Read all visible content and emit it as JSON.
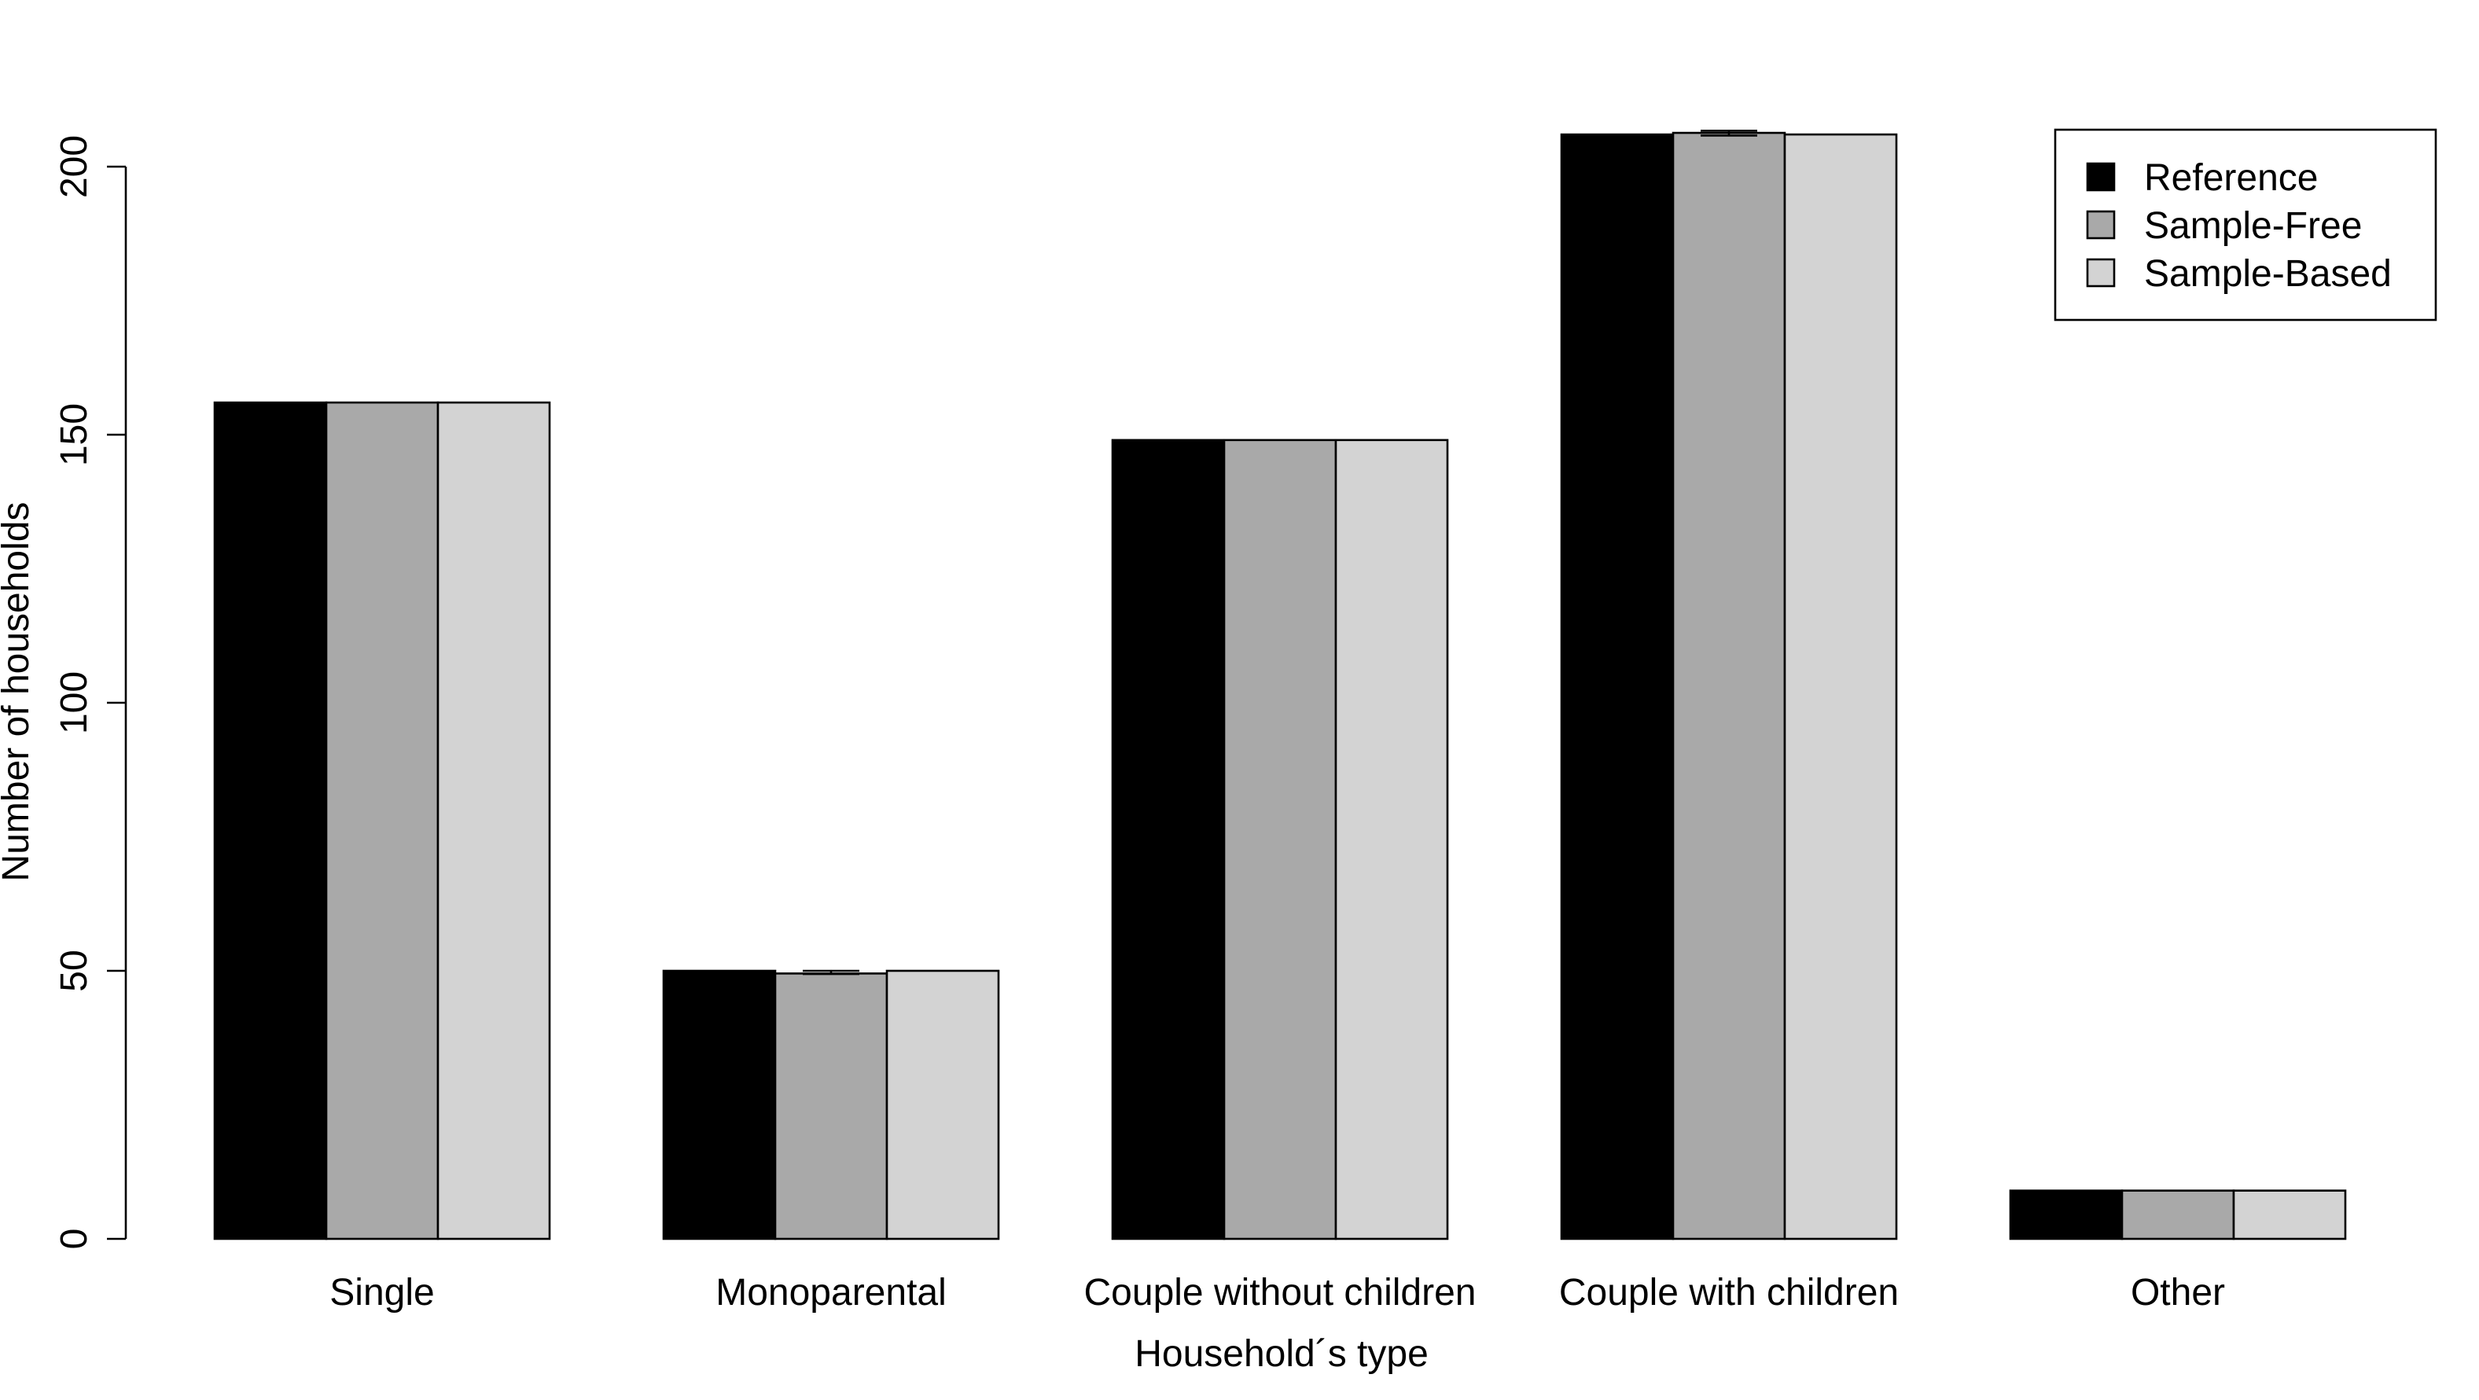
{
  "chart_data": {
    "type": "bar",
    "xlabel": "Household´s type",
    "ylabel": "Number of households",
    "categories": [
      "Single",
      "Monoparental",
      "Couple without children",
      "Couple with children",
      "Other"
    ],
    "series": [
      {
        "name": "Reference",
        "color": "#000000",
        "values": [
          156,
          50,
          149,
          206,
          9
        ]
      },
      {
        "name": "Sample-Free",
        "color": "#a9a9a9",
        "values": [
          156,
          49.5,
          149,
          206.3,
          9
        ]
      },
      {
        "name": "Sample-Based",
        "color": "#d3d3d3",
        "values": [
          156,
          50,
          149,
          206,
          9
        ]
      }
    ],
    "error_bars": [
      {
        "series": "Sample-Free",
        "category": "Monoparental",
        "low": 49.4,
        "high": 50
      },
      {
        "series": "Sample-Free",
        "category": "Couple with children",
        "low": 205.8,
        "high": 206.7
      }
    ],
    "yticks": [
      0,
      50,
      100,
      150,
      200
    ],
    "ylim": [
      0,
      200
    ],
    "legend_position": "top-right",
    "grid": false
  }
}
